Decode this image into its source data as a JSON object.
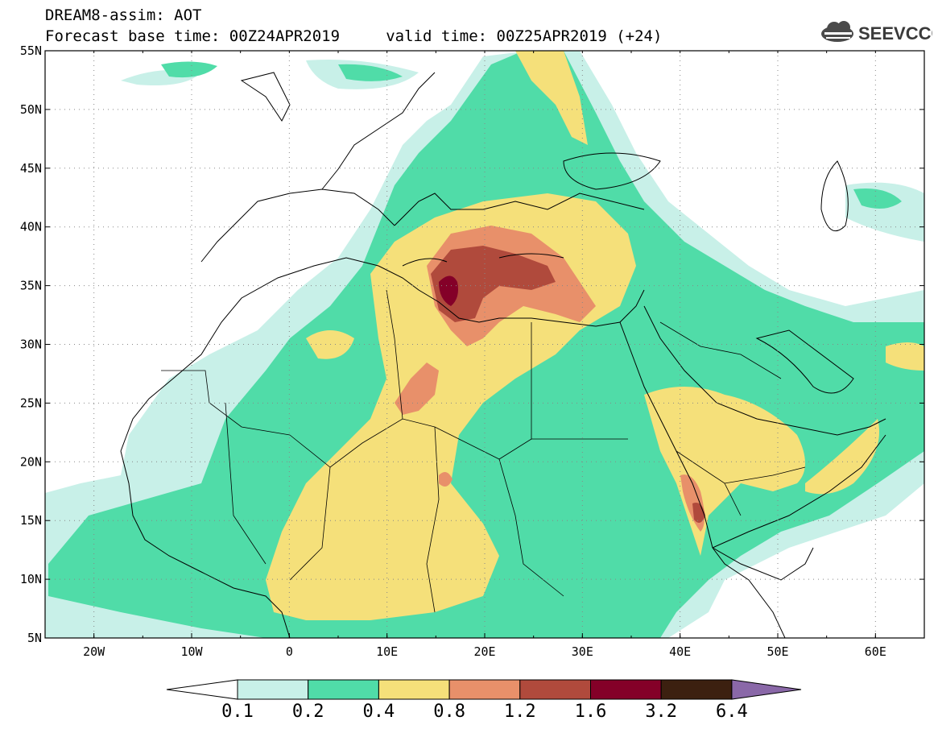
{
  "header": {
    "title_line1": "DREAM8-assim: AOT",
    "title_line2": "Forecast base time: 00Z24APR2019     valid time: 00Z25APR2019 (+24)"
  },
  "logo": {
    "text": "SEEVCCC",
    "icon": "cloud-icon"
  },
  "map": {
    "product": "AOT",
    "lon_range": [
      -25,
      65
    ],
    "lat_range": [
      5,
      55
    ],
    "lon_ticks": [
      "20W",
      "10W",
      "0",
      "10E",
      "20E",
      "30E",
      "40E",
      "50E",
      "60E"
    ],
    "lat_ticks": [
      "55N",
      "50N",
      "45N",
      "40N",
      "35N",
      "30N",
      "25N",
      "20N",
      "15N",
      "10N",
      "5N"
    ],
    "gridlines": "dotted"
  },
  "colorbar": {
    "labels": [
      "0.1",
      "0.2",
      "0.4",
      "0.8",
      "1.2",
      "1.6",
      "3.2",
      "6.4"
    ],
    "colors": [
      "#c8f0e8",
      "#50dca8",
      "#f5e07a",
      "#e8906a",
      "#b04a3c",
      "#840028",
      "#3c2010"
    ],
    "under_color": "#ffffff",
    "over_color": "#8a68a8"
  }
}
